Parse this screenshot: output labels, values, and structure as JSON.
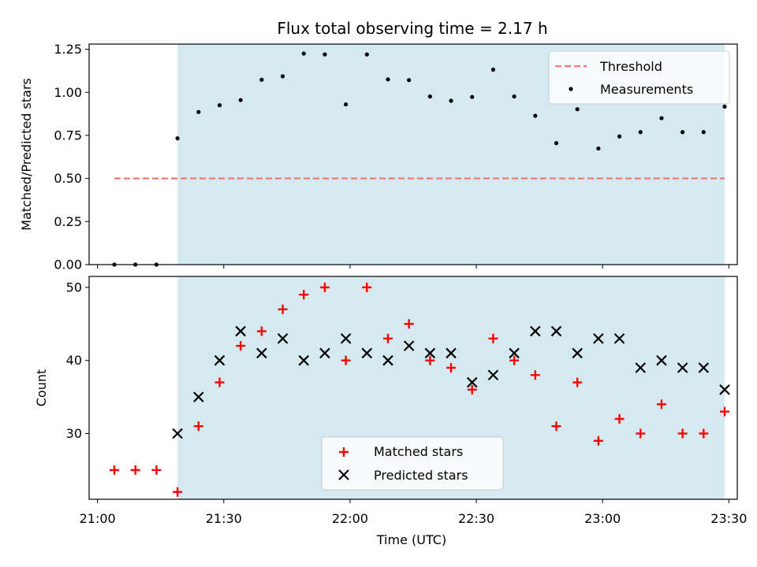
{
  "colors": {
    "observing_span": "#d4eaf0",
    "threshold": "#f07878",
    "measurements": "#000000",
    "matched": "#ff0000",
    "predicted": "#000000"
  },
  "chart_data": [
    {
      "type": "scatter",
      "title": "Flux total observing time = 2.17 h",
      "xlabel": "",
      "ylabel": "Matched/Predicted stars",
      "xlim": [
        "20:58",
        "23:32"
      ],
      "ylim": [
        0,
        1.28
      ],
      "yticks": [
        "0.00",
        "0.25",
        "0.50",
        "0.75",
        "1.00",
        "1.25"
      ],
      "x_tick_labels": "hidden",
      "grid": false,
      "legend": "top-right",
      "observing_span": [
        "21:19",
        "23:29"
      ],
      "threshold": {
        "name": "Threshold",
        "value": 0.5,
        "x_range": [
          "21:04",
          "23:29"
        ],
        "style": "dashed"
      },
      "series": [
        {
          "name": "Measurements",
          "marker": "dot",
          "x": [
            "21:04",
            "21:09",
            "21:14",
            "21:19",
            "21:24",
            "21:29",
            "21:34",
            "21:39",
            "21:44",
            "21:49",
            "21:54",
            "21:59",
            "22:04",
            "22:09",
            "22:14",
            "22:19",
            "22:24",
            "22:29",
            "22:34",
            "22:39",
            "22:44",
            "22:49",
            "22:54",
            "22:59",
            "23:04",
            "23:09",
            "23:14",
            "23:19",
            "23:24",
            "23:29"
          ],
          "values": [
            0.0,
            0.0,
            0.0,
            0.733,
            0.886,
            0.925,
            0.955,
            1.073,
            1.093,
            1.225,
            1.22,
            0.93,
            1.22,
            1.075,
            1.071,
            0.976,
            0.951,
            0.973,
            1.132,
            0.976,
            0.864,
            0.705,
            0.902,
            0.674,
            0.744,
            0.769,
            0.85,
            0.769,
            0.769,
            0.917
          ]
        }
      ]
    },
    {
      "type": "scatter",
      "title": "",
      "xlabel": "Time (UTC)",
      "ylabel": "Count",
      "xlim": [
        "20:58",
        "23:32"
      ],
      "ylim": [
        21,
        51.5
      ],
      "yticks": [
        "30",
        "40",
        "50"
      ],
      "xticks": [
        "21:00",
        "21:30",
        "22:00",
        "22:30",
        "23:00",
        "23:30"
      ],
      "grid": false,
      "legend": "bottom-center",
      "observing_span": [
        "21:19",
        "23:29"
      ],
      "series": [
        {
          "name": "Matched stars",
          "marker": "plus",
          "x": [
            "21:04",
            "21:09",
            "21:14",
            "21:19",
            "21:24",
            "21:29",
            "21:34",
            "21:39",
            "21:44",
            "21:49",
            "21:54",
            "21:59",
            "22:04",
            "22:09",
            "22:14",
            "22:19",
            "22:24",
            "22:29",
            "22:34",
            "22:39",
            "22:44",
            "22:49",
            "22:54",
            "22:59",
            "23:04",
            "23:09",
            "23:14",
            "23:19",
            "23:24",
            "23:29"
          ],
          "values": [
            25,
            25,
            25,
            22,
            31,
            37,
            42,
            44,
            47,
            49,
            50,
            40,
            50,
            43,
            45,
            40,
            39,
            36,
            43,
            40,
            38,
            31,
            37,
            29,
            32,
            30,
            34,
            30,
            30,
            33
          ]
        },
        {
          "name": "Predicted stars",
          "marker": "x",
          "x": [
            "21:19",
            "21:24",
            "21:29",
            "21:34",
            "21:39",
            "21:44",
            "21:49",
            "21:54",
            "21:59",
            "22:04",
            "22:09",
            "22:14",
            "22:19",
            "22:24",
            "22:29",
            "22:34",
            "22:39",
            "22:44",
            "22:49",
            "22:54",
            "22:59",
            "23:04",
            "23:09",
            "23:14",
            "23:19",
            "23:24",
            "23:29"
          ],
          "values": [
            30,
            35,
            40,
            44,
            41,
            43,
            40,
            41,
            43,
            41,
            40,
            42,
            41,
            41,
            37,
            38,
            41,
            44,
            44,
            41,
            43,
            43,
            39,
            40,
            39,
            39,
            36
          ]
        }
      ]
    }
  ]
}
